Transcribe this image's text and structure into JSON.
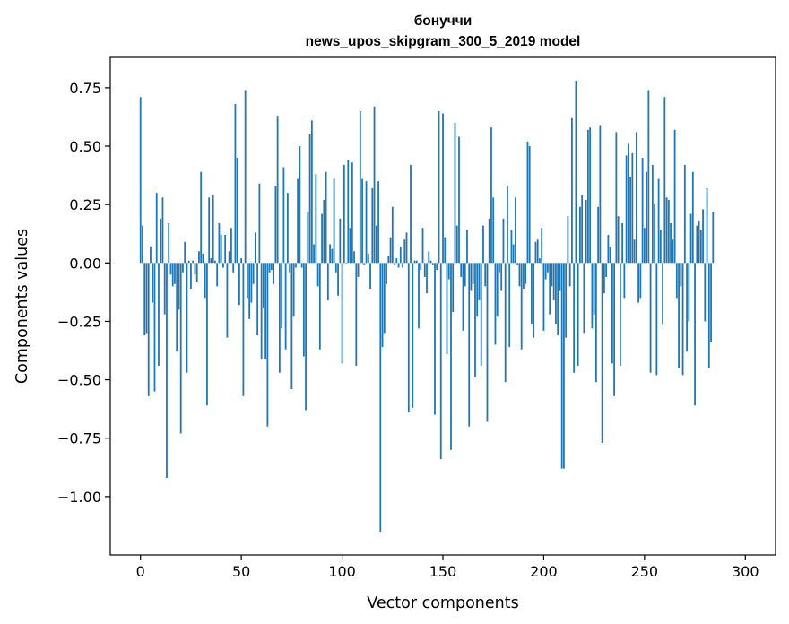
{
  "chart_data": {
    "type": "bar",
    "title": "бонуччи",
    "subtitle": "news_upos_skipgram_300_5_2019 model",
    "xlabel": "Vector components",
    "ylabel": "Components values",
    "xlim": [
      -15,
      315
    ],
    "ylim": [
      -1.25,
      0.88
    ],
    "xticks": [
      0,
      50,
      100,
      150,
      200,
      250,
      300
    ],
    "xtick_labels": [
      "0",
      "50",
      "100",
      "150",
      "200",
      "250",
      "300"
    ],
    "yticks": [
      0.75,
      0.5,
      0.25,
      0.0,
      -0.25,
      -0.5,
      -0.75,
      -1.0
    ],
    "ytick_labels": [
      "0.75",
      "0.50",
      "0.25",
      "0.00",
      "−0.25",
      "−0.50",
      "−0.75",
      "−1.00"
    ],
    "grid": false,
    "color": "#1f77b4",
    "values": [
      0.71,
      0.16,
      -0.31,
      -0.3,
      -0.57,
      0.07,
      -0.17,
      -0.55,
      0.3,
      -0.44,
      0.19,
      0.28,
      -0.22,
      -0.92,
      0.17,
      -0.05,
      -0.1,
      -0.09,
      -0.38,
      -0.2,
      -0.73,
      -0.04,
      0.09,
      -0.47,
      0.01,
      -0.11,
      0.01,
      -0.05,
      -0.08,
      0.05,
      0.39,
      0.04,
      -0.15,
      -0.61,
      0.28,
      0.02,
      0.29,
      0.01,
      -0.1,
      0.17,
      0.12,
      -0.02,
      0.12,
      -0.32,
      0.05,
      0.15,
      -0.04,
      0.68,
      0.45,
      -0.18,
      0.02,
      -0.57,
      0.74,
      -0.15,
      -0.24,
      -0.17,
      -0.09,
      0.13,
      -0.31,
      0.34,
      -0.41,
      -0.19,
      -0.41,
      -0.7,
      -0.04,
      -0.03,
      -0.09,
      0.33,
      0.63,
      -0.47,
      -0.28,
      0.41,
      -0.37,
      0.3,
      -0.04,
      -0.54,
      -0.23,
      -0.02,
      0.36,
      0.5,
      -0.02,
      -0.4,
      -0.63,
      0.22,
      0.55,
      0.61,
      0.08,
      0.38,
      -0.1,
      -0.37,
      0.21,
      0.27,
      0.39,
      -0.16,
      0.08,
      0.06,
      0.36,
      -0.04,
      -0.14,
      0.19,
      -0.43,
      0.42,
      0.0,
      0.44,
      0.15,
      0.43,
      0.05,
      -0.44,
      -0.06,
      0.65,
      0.36,
      -0.01,
      0.35,
      0.04,
      -0.11,
      0.32,
      0.67,
      0.16,
      0.35,
      -1.15,
      -0.36,
      -0.3,
      -0.09,
      0.03,
      0.11,
      0.24,
      -0.01,
      0.02,
      -0.02,
      0.07,
      -0.02,
      0.1,
      0.13,
      -0.64,
      0.42,
      -0.62,
      0.01,
      0.01,
      -0.28,
      -0.03,
      0.15,
      -0.06,
      -0.13,
      0.05,
      0.01,
      -0.01,
      -0.65,
      -0.03,
      0.65,
      -0.84,
      0.64,
      0.11,
      -0.39,
      -0.07,
      -0.8,
      -0.21,
      0.6,
      0.16,
      0.54,
      -0.06,
      -0.29,
      -0.1,
      0.14,
      -0.7,
      -0.12,
      -0.09,
      -0.49,
      -0.23,
      -0.16,
      -0.44,
      0.16,
      -0.1,
      -0.68,
      0.19,
      0.58,
      0.28,
      -0.35,
      -0.23,
      -0.04,
      -0.12,
      0.19,
      -0.51,
      0.33,
      -0.36,
      0.14,
      0.08,
      0.28,
      -0.01,
      -0.1,
      -0.37,
      -0.11,
      -0.09,
      0.52,
      0.5,
      -0.26,
      -0.32,
      0.09,
      0.1,
      0.02,
      0.15,
      -0.29,
      -0.07,
      -0.04,
      -0.22,
      -0.1,
      -0.16,
      -0.26,
      -0.31,
      -0.12,
      -0.88,
      -0.88,
      -0.32,
      0.2,
      -0.1,
      0.62,
      -0.47,
      0.78,
      -0.44,
      0.24,
      0.29,
      -0.3,
      0.27,
      0.57,
      0.58,
      -0.28,
      -0.22,
      -0.51,
      0.24,
      0.59,
      -0.77,
      -0.13,
      -0.06,
      0.12,
      0.07,
      -0.43,
      -0.57,
      0.56,
      0.2,
      -0.44,
      0.17,
      -0.15,
      0.46,
      0.51,
      0.37,
      0.47,
      0.1,
      0.56,
      -0.17,
      -0.15,
      0.45,
      0.15,
      0.39,
      0.74,
      -0.47,
      0.42,
      0.25,
      -0.48,
      0.36,
      0.14,
      -0.26,
      0.71,
      0.28,
      0.27,
      0.17,
      0.1,
      0.57,
      -0.15,
      -0.45,
      -0.1,
      -0.48,
      0.42,
      -0.38,
      -0.25,
      0.21,
      0.39,
      -0.61,
      0.16,
      0.18,
      0.14,
      0.23,
      -0.25,
      0.32,
      -0.45,
      -0.34,
      0.22
    ]
  }
}
